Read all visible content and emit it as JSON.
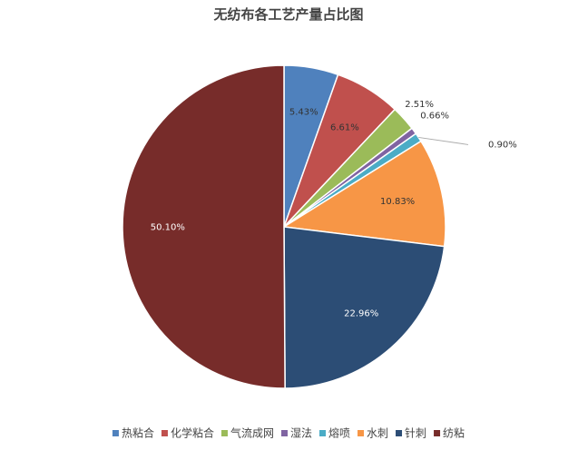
{
  "chart_data": {
    "type": "pie",
    "title": "无纺布各工艺产量占比图",
    "categories": [
      "热粘合",
      "化学粘合",
      "气流成网",
      "湿法",
      "熔喷",
      "水刺",
      "针刺",
      "纺粘"
    ],
    "values": [
      5.43,
      6.61,
      2.51,
      0.66,
      0.9,
      10.83,
      22.96,
      50.1
    ],
    "value_labels": [
      "5.43%",
      "6.61%",
      "2.51%",
      "0.66%",
      "0.90%",
      "10.83%",
      "22.96%",
      "50.10%"
    ],
    "colors": [
      "#4f81bd",
      "#c0504d",
      "#9bbb59",
      "#8064a2",
      "#4bacc6",
      "#f79646",
      "#2c4d75",
      "#772c2a"
    ],
    "legend": "bottom"
  }
}
